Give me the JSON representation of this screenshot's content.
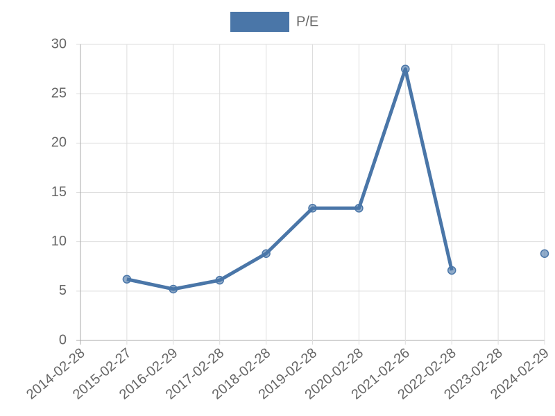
{
  "chart_data": {
    "type": "line",
    "categories": [
      "2014-02-28",
      "2015-02-27",
      "2016-02-29",
      "2017-02-28",
      "2018-02-28",
      "2019-02-28",
      "2020-02-28",
      "2021-02-26",
      "2022-02-28",
      "2023-02-28",
      "2024-02-29"
    ],
    "series": [
      {
        "name": "P/E",
        "color": "#4a76a8",
        "values": [
          null,
          6.2,
          5.2,
          6.1,
          8.8,
          13.4,
          13.4,
          27.5,
          7.1,
          null,
          8.8
        ]
      }
    ],
    "ylim": [
      0,
      30
    ],
    "yticks": [
      0,
      5,
      10,
      15,
      20,
      25,
      30
    ],
    "grid": true,
    "legend": "top"
  }
}
